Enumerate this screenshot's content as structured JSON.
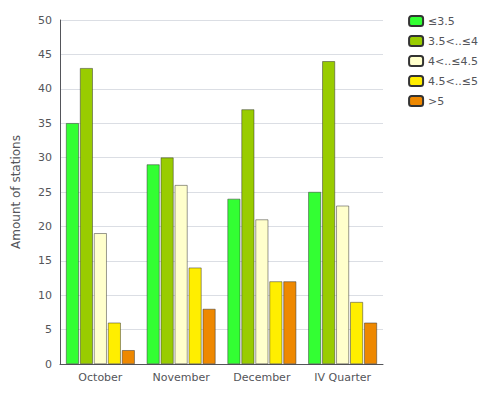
{
  "chart_data": {
    "type": "bar",
    "categories": [
      "October",
      "November",
      "December",
      "IV Quarter"
    ],
    "series": [
      {
        "name": "≤3.5",
        "color": "#33ff33",
        "values": [
          35,
          29,
          24,
          25
        ]
      },
      {
        "name": "3.5<..≤4",
        "color": "#99cc00",
        "values": [
          43,
          30,
          37,
          44
        ]
      },
      {
        "name": "4<..≤4.5",
        "color": "#ffffcc",
        "values": [
          19,
          26,
          21,
          23
        ]
      },
      {
        "name": "4.5<..≤5",
        "color": "#ffee00",
        "values": [
          6,
          14,
          12,
          9
        ]
      },
      {
        "name": ">5",
        "color": "#ee8800",
        "values": [
          2,
          8,
          12,
          6
        ]
      }
    ],
    "ylabel": "Amount of stations",
    "ylim": [
      0,
      50
    ],
    "yticks": [
      0,
      5,
      10,
      15,
      20,
      25,
      30,
      35,
      40,
      45,
      50
    ],
    "grid": true,
    "legend": "upper right"
  }
}
